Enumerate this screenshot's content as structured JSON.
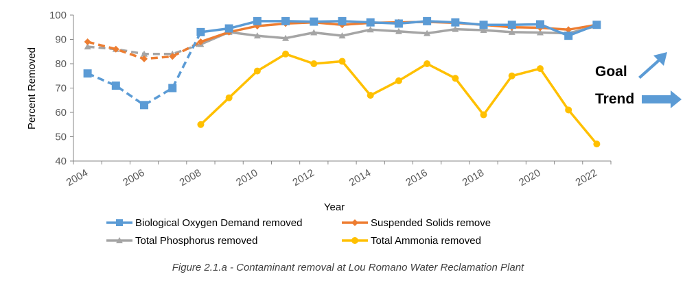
{
  "chart_data": {
    "type": "line",
    "categories": [
      2004,
      2005,
      2006,
      2007,
      2008,
      2009,
      2010,
      2011,
      2012,
      2013,
      2014,
      2015,
      2016,
      2017,
      2018,
      2019,
      2020,
      2021,
      2022
    ],
    "xtick_labels": [
      "2004",
      "2006",
      "2008",
      "2010",
      "2012",
      "2014",
      "2016",
      "2018",
      "2020",
      "2022"
    ],
    "xlabel": "Year",
    "ylabel": "Percent Removed",
    "ylim": [
      40,
      100
    ],
    "yticks": [
      40,
      50,
      60,
      70,
      80,
      90,
      100
    ],
    "grid": false,
    "legend": "bottom",
    "dashed_until": 2008,
    "series": [
      {
        "name": "Biological Oxygen Demand removed",
        "color": "#5B9BD5",
        "marker": "square",
        "values": [
          76,
          71,
          63,
          70,
          93,
          94.5,
          97.5,
          97.5,
          97.3,
          97.5,
          97,
          96.5,
          97.5,
          97,
          96,
          96,
          96.2,
          91.5,
          96
        ]
      },
      {
        "name": "Suspended Solids remove",
        "color": "#ED7D31",
        "marker": "diamond",
        "values": [
          89,
          86,
          82,
          83,
          89,
          93,
          95.5,
          96.5,
          97,
          96,
          96.8,
          97,
          97.2,
          96.8,
          96,
          95,
          94.8,
          94,
          96
        ]
      },
      {
        "name": "Total Phosphorus removed",
        "color": "#A5A5A5",
        "marker": "triangle",
        "values": [
          87,
          86,
          84,
          84,
          88,
          93,
          91.5,
          90.5,
          92.8,
          91.5,
          94,
          93.3,
          92.5,
          94.2,
          93.8,
          93,
          92.8,
          92.5,
          95.5
        ]
      },
      {
        "name": "Total Ammonia removed",
        "color": "#FFC000",
        "marker": "circle",
        "values": [
          null,
          null,
          null,
          null,
          55,
          66,
          77,
          84,
          80,
          81,
          67,
          73,
          80,
          74,
          59,
          75,
          78,
          61,
          47
        ]
      }
    ],
    "annotations": {
      "goal": "Goal",
      "trend": "Trend",
      "arrow_color": "#5B9BD5"
    }
  },
  "caption": "Figure 2.1.a - Contaminant removal at Lou Romano Water Reclamation Plant"
}
